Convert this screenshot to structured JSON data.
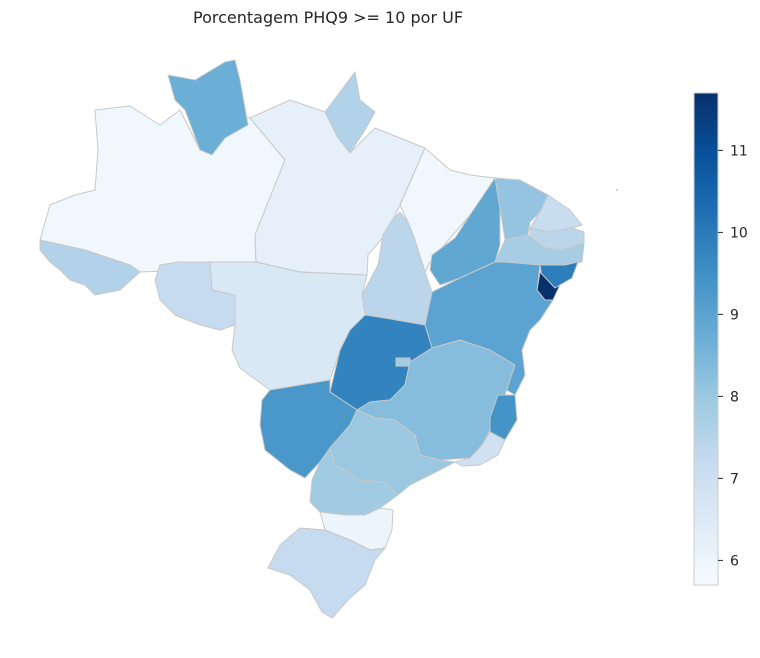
{
  "chart_data": {
    "type": "choropleth",
    "title": "Porcentagem PHQ9 >= 10 por UF",
    "colormap": "Blues",
    "colorbar": {
      "min": 5.7,
      "max": 11.7,
      "ticks": [
        {
          "value": 6,
          "label": "6"
        },
        {
          "value": 7,
          "label": "7"
        },
        {
          "value": 8,
          "label": "8"
        },
        {
          "value": 9,
          "label": "9"
        },
        {
          "value": 10,
          "label": "10"
        },
        {
          "value": 11,
          "label": "11"
        }
      ]
    },
    "regions": [
      {
        "id": "AC",
        "value": 7.6
      },
      {
        "id": "AM",
        "value": 5.9
      },
      {
        "id": "RR",
        "value": 8.7
      },
      {
        "id": "PA",
        "value": 6.2
      },
      {
        "id": "AP",
        "value": 7.6
      },
      {
        "id": "MA",
        "value": 5.9
      },
      {
        "id": "PI",
        "value": 8.9
      },
      {
        "id": "CE",
        "value": 8.1
      },
      {
        "id": "RN",
        "value": 7.1
      },
      {
        "id": "PB",
        "value": 7.4
      },
      {
        "id": "PE",
        "value": 7.8
      },
      {
        "id": "AL",
        "value": 9.9
      },
      {
        "id": "SE",
        "value": 11.7
      },
      {
        "id": "BA",
        "value": 9.0
      },
      {
        "id": "TO",
        "value": 7.4
      },
      {
        "id": "RO",
        "value": 7.2
      },
      {
        "id": "MT",
        "value": 6.6
      },
      {
        "id": "GO",
        "value": 9.8
      },
      {
        "id": "DF",
        "value": 7.9
      },
      {
        "id": "MS",
        "value": 9.3
      },
      {
        "id": "MG",
        "value": 8.3
      },
      {
        "id": "ES",
        "value": 9.4
      },
      {
        "id": "RJ",
        "value": 6.9
      },
      {
        "id": "SP",
        "value": 8.0
      },
      {
        "id": "PR",
        "value": 7.9
      },
      {
        "id": "SC",
        "value": 6.0
      },
      {
        "id": "RS",
        "value": 7.2
      }
    ]
  }
}
